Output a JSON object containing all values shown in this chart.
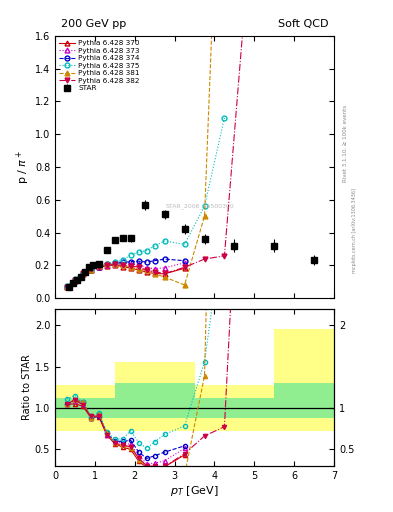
{
  "title_left": "200 GeV pp",
  "title_right": "Soft QCD",
  "ylabel_main": "p / $\\pi^+$",
  "ylabel_ratio": "Ratio to STAR",
  "xlabel": "$p_T$ [GeV]",
  "right_label_top": "Rivet 3.1.10, ≥ 100k events",
  "right_label_bot": "mcplots.cern.ch [arXiv:1306.3436]",
  "watermark": "STAR_2006_S6500300",
  "star_x": [
    0.35,
    0.45,
    0.55,
    0.65,
    0.75,
    0.85,
    0.95,
    1.1,
    1.3,
    1.5,
    1.7,
    1.9,
    2.25,
    2.75,
    3.25,
    3.75,
    4.5,
    5.5,
    6.5
  ],
  "star_y": [
    0.065,
    0.09,
    0.11,
    0.13,
    0.16,
    0.19,
    0.2,
    0.21,
    0.295,
    0.355,
    0.365,
    0.365,
    0.57,
    0.51,
    0.42,
    0.36,
    0.32,
    0.32,
    0.23
  ],
  "star_yerr": [
    0.005,
    0.006,
    0.007,
    0.008,
    0.009,
    0.01,
    0.01,
    0.012,
    0.015,
    0.018,
    0.018,
    0.02,
    0.03,
    0.03,
    0.03,
    0.03,
    0.04,
    0.04,
    0.03
  ],
  "p370_x": [
    0.3,
    0.5,
    0.7,
    0.9,
    1.1,
    1.3,
    1.5,
    1.7,
    1.9,
    2.1,
    2.3,
    2.5,
    2.75,
    3.25
  ],
  "p370_y": [
    0.068,
    0.105,
    0.148,
    0.172,
    0.188,
    0.198,
    0.202,
    0.192,
    0.182,
    0.172,
    0.158,
    0.15,
    0.148,
    0.182
  ],
  "p370_color": "#cc0000",
  "p370_ls": "-",
  "p370_marker": "^",
  "p373_x": [
    0.3,
    0.5,
    0.7,
    0.9,
    1.1,
    1.3,
    1.5,
    1.7,
    1.9,
    2.1,
    2.3,
    2.5,
    2.75,
    3.25
  ],
  "p373_y": [
    0.068,
    0.108,
    0.152,
    0.172,
    0.19,
    0.2,
    0.21,
    0.21,
    0.205,
    0.205,
    0.185,
    0.18,
    0.185,
    0.215
  ],
  "p373_color": "#cc00cc",
  "p373_ls": ":",
  "p373_marker": "^",
  "p374_x": [
    0.3,
    0.5,
    0.7,
    0.9,
    1.1,
    1.3,
    1.5,
    1.7,
    1.9,
    2.1,
    2.3,
    2.5,
    2.75,
    3.25
  ],
  "p374_y": [
    0.068,
    0.11,
    0.155,
    0.172,
    0.19,
    0.205,
    0.212,
    0.218,
    0.222,
    0.225,
    0.22,
    0.228,
    0.238,
    0.228
  ],
  "p374_color": "#0000cc",
  "p374_ls": "--",
  "p374_marker": "o",
  "p375_x": [
    0.3,
    0.5,
    0.7,
    0.9,
    1.1,
    1.3,
    1.5,
    1.7,
    1.9,
    2.1,
    2.3,
    2.5,
    2.75,
    3.25,
    3.75,
    4.25
  ],
  "p375_y": [
    0.072,
    0.115,
    0.155,
    0.175,
    0.198,
    0.21,
    0.22,
    0.23,
    0.265,
    0.28,
    0.29,
    0.318,
    0.348,
    0.328,
    0.56,
    1.1
  ],
  "p375_color": "#00bbbb",
  "p375_ls": ":",
  "p375_marker": "o",
  "p381_x": [
    0.3,
    0.5,
    0.7,
    0.9,
    1.1,
    1.3,
    1.5,
    1.7,
    1.9,
    2.1,
    2.3,
    2.5,
    2.75,
    3.25,
    3.75,
    4.25
  ],
  "p381_y": [
    0.068,
    0.11,
    0.155,
    0.172,
    0.195,
    0.205,
    0.205,
    0.2,
    0.19,
    0.18,
    0.17,
    0.148,
    0.128,
    0.08,
    0.5,
    3.6
  ],
  "p381_color": "#cc8800",
  "p381_ls": "--",
  "p381_marker": "^",
  "p382_x": [
    0.3,
    0.5,
    0.7,
    0.9,
    1.1,
    1.3,
    1.5,
    1.7,
    1.9,
    2.1,
    2.3,
    2.5,
    2.75,
    3.25,
    3.75,
    4.25,
    4.75
  ],
  "p382_y": [
    0.068,
    0.11,
    0.15,
    0.175,
    0.19,
    0.2,
    0.205,
    0.2,
    0.195,
    0.19,
    0.17,
    0.16,
    0.15,
    0.188,
    0.238,
    0.258,
    1.75
  ],
  "p382_color": "#cc0044",
  "p382_ls": "-.",
  "p382_marker": "v",
  "ylim_main": [
    0.0,
    1.6
  ],
  "ylim_ratio": [
    0.3,
    2.2
  ],
  "xlim": [
    0.0,
    7.0
  ],
  "band_edges": [
    0.0,
    1.5,
    2.5,
    3.5,
    5.5,
    7.0
  ],
  "yellow_lo_vals": [
    0.72,
    0.72,
    0.72,
    0.72,
    0.72,
    0.72
  ],
  "yellow_hi_vals": [
    1.28,
    1.55,
    1.55,
    1.28,
    1.95,
    1.95
  ],
  "green_lo_vals": [
    0.88,
    0.88,
    0.88,
    0.88,
    0.88,
    0.88
  ],
  "green_hi_vals": [
    1.12,
    1.3,
    1.3,
    1.12,
    1.3,
    1.3
  ],
  "green_color": "#90ee90",
  "yellow_color": "#ffff88"
}
